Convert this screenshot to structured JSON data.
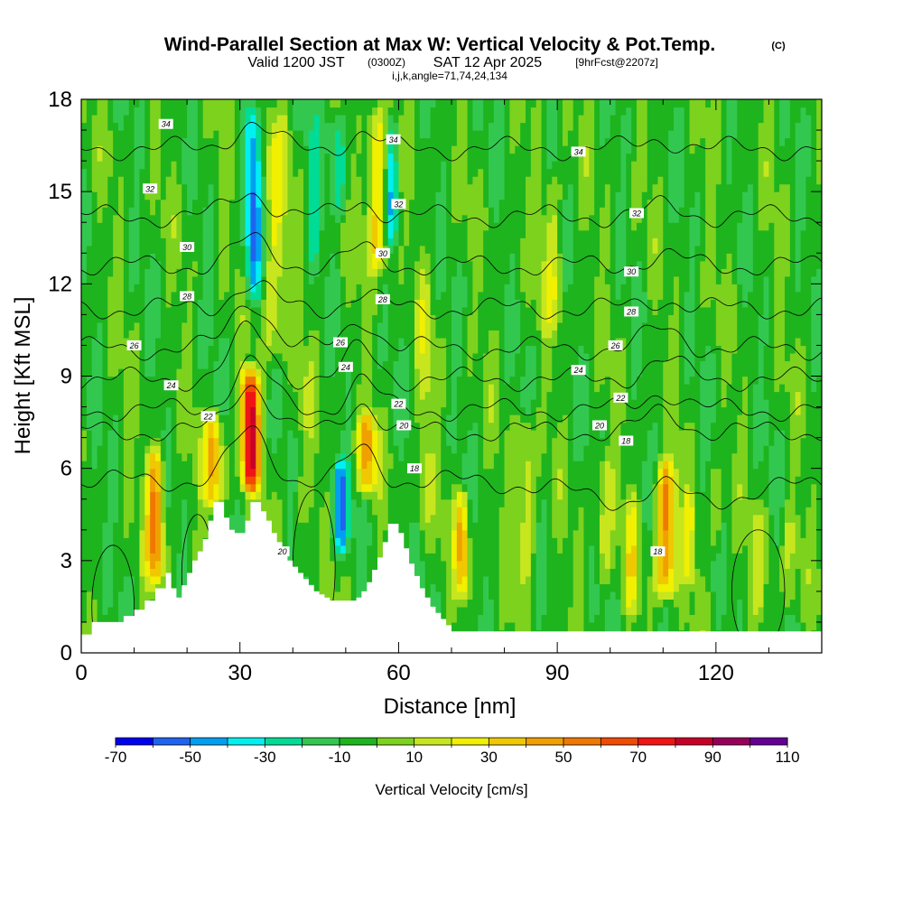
{
  "title": {
    "main": "Wind-Parallel Section at Max W: Vertical Velocity & Pot.Temp.",
    "copyright": "(C)",
    "valid_prefix": "Valid 1200 JST",
    "valid_utc": "(0300Z)",
    "valid_date": "SAT 12 Apr 2025",
    "forecast_tag": "[9hrFcst@2207z]",
    "params": "i,j,k,angle=71,74,24,134"
  },
  "colorbar_label": "Vertical Velocity [cm/s]",
  "colorbar_colors": [
    "#0000f0",
    "#1e64f0",
    "#00a0f0",
    "#00f0f0",
    "#00dc96",
    "#32c850",
    "#1eb41e",
    "#7dd21e",
    "#c8e61e",
    "#f0f000",
    "#f0c800",
    "#f0a000",
    "#f07800",
    "#f04b00",
    "#f01414",
    "#c80028",
    "#96005a",
    "#640096"
  ],
  "chart_data": {
    "type": "heatmap",
    "xlabel": "Distance [nm]",
    "ylabel": "Height [Kft MSL]",
    "xlim": [
      0,
      140
    ],
    "ylim": [
      0,
      18
    ],
    "xticks": [
      0,
      30,
      60,
      90,
      120
    ],
    "yticks": [
      0,
      3,
      6,
      9,
      12,
      15,
      18
    ],
    "colorbar_levels": [
      -70,
      -60,
      -50,
      -40,
      -30,
      -20,
      -10,
      0,
      10,
      20,
      30,
      40,
      50,
      60,
      70,
      80,
      90,
      100,
      110
    ],
    "colorbar_tick_labels": [
      "-70",
      "-50",
      "-30",
      "-10",
      "10",
      "30",
      "50",
      "70",
      "90",
      "110"
    ],
    "series": [
      {
        "name": "Vertical Velocity [cm/s]",
        "features": [
          {
            "x": 2,
            "w": 3,
            "peak": -5,
            "bottom": 0.5,
            "top": 7
          },
          {
            "x": 14,
            "w": 1.6,
            "peak": 55,
            "bottom": 2,
            "top": 7
          },
          {
            "x": 25,
            "w": 1.8,
            "peak": 45,
            "bottom": 4.5,
            "top": 8
          },
          {
            "x": 32,
            "w": 1.6,
            "peak": 90,
            "bottom": 5,
            "top": 9.5
          },
          {
            "x": 32.5,
            "w": 1.6,
            "peak": -45,
            "bottom": 11,
            "top": 18
          },
          {
            "x": 36.5,
            "w": 2.2,
            "peak": 25,
            "bottom": 9,
            "top": 18
          },
          {
            "x": 42,
            "w": 1.8,
            "peak": 8,
            "bottom": 4,
            "top": 10
          },
          {
            "x": 44,
            "w": 1.4,
            "peak": -15,
            "bottom": 12,
            "top": 18
          },
          {
            "x": 49,
            "w": 1.4,
            "peak": -45,
            "bottom": 3,
            "top": 6.5
          },
          {
            "x": 48.5,
            "w": 1.5,
            "peak": -25,
            "bottom": 14,
            "top": 18
          },
          {
            "x": 54,
            "w": 1.8,
            "peak": 45,
            "bottom": 5,
            "top": 8
          },
          {
            "x": 56,
            "w": 2.0,
            "peak": 40,
            "bottom": 12,
            "top": 18
          },
          {
            "x": 58.5,
            "w": 1.2,
            "peak": -35,
            "bottom": 13,
            "top": 18
          },
          {
            "x": 65,
            "w": 1.5,
            "peak": 15,
            "bottom": 3,
            "top": 13
          },
          {
            "x": 72,
            "w": 1.3,
            "peak": 45,
            "bottom": 1.5,
            "top": 5.5
          },
          {
            "x": 84,
            "w": 1.6,
            "peak": 25,
            "bottom": 2,
            "top": 8
          },
          {
            "x": 89,
            "w": 1.8,
            "peak": 20,
            "bottom": 10,
            "top": 16
          },
          {
            "x": 99,
            "w": 1.5,
            "peak": 20,
            "bottom": 2,
            "top": 7
          },
          {
            "x": 104,
            "w": 1.2,
            "peak": 25,
            "bottom": 1,
            "top": 5.5
          },
          {
            "x": 110.5,
            "w": 1.8,
            "peak": 60,
            "bottom": 1.5,
            "top": 6.5
          },
          {
            "x": 115,
            "w": 1.2,
            "peak": 25,
            "bottom": 2,
            "top": 5.5
          },
          {
            "x": 120,
            "w": 1.2,
            "peak": 15,
            "bottom": 3,
            "top": 6
          },
          {
            "x": 128,
            "w": 1.5,
            "peak": 15,
            "bottom": 1,
            "top": 5
          },
          {
            "x": 134,
            "w": 1.5,
            "peak": 15,
            "bottom": 1,
            "top": 5
          }
        ]
      },
      {
        "name": "Pot.Temp. contours",
        "contour_levels": [
          18,
          20,
          22,
          24,
          26,
          28,
          30,
          32,
          34
        ],
        "contour_labels": [
          {
            "text": "34",
            "x": 16,
            "y": 17.2
          },
          {
            "text": "34",
            "x": 59,
            "y": 16.7
          },
          {
            "text": "34",
            "x": 94,
            "y": 16.3
          },
          {
            "text": "32",
            "x": 13,
            "y": 15.1
          },
          {
            "text": "32",
            "x": 60,
            "y": 14.6
          },
          {
            "text": "32",
            "x": 105,
            "y": 14.3
          },
          {
            "text": "30",
            "x": 20,
            "y": 13.2
          },
          {
            "text": "30",
            "x": 57,
            "y": 13.0
          },
          {
            "text": "30",
            "x": 104,
            "y": 12.4
          },
          {
            "text": "28",
            "x": 20,
            "y": 11.6
          },
          {
            "text": "28",
            "x": 57,
            "y": 11.5
          },
          {
            "text": "28",
            "x": 104,
            "y": 11.1
          },
          {
            "text": "26",
            "x": 10,
            "y": 10.0
          },
          {
            "text": "26",
            "x": 49,
            "y": 10.1
          },
          {
            "text": "26",
            "x": 101,
            "y": 10.0
          },
          {
            "text": "24",
            "x": 17,
            "y": 8.7
          },
          {
            "text": "24",
            "x": 50,
            "y": 9.3
          },
          {
            "text": "24",
            "x": 94,
            "y": 9.2
          },
          {
            "text": "22",
            "x": 24,
            "y": 7.7
          },
          {
            "text": "22",
            "x": 60,
            "y": 8.1
          },
          {
            "text": "22",
            "x": 102,
            "y": 8.3
          },
          {
            "text": "20",
            "x": 61,
            "y": 7.4
          },
          {
            "text": "20",
            "x": 98,
            "y": 7.4
          },
          {
            "text": "20",
            "x": 38,
            "y": 3.3
          },
          {
            "text": "18",
            "x": 63,
            "y": 6.0
          },
          {
            "text": "18",
            "x": 103,
            "y": 6.9
          },
          {
            "text": "18",
            "x": 109,
            "y": 3.3
          }
        ]
      }
    ],
    "terrain_profile": {
      "x": [
        0,
        2,
        6,
        8,
        10,
        12,
        14,
        16,
        17,
        18,
        19,
        20,
        21,
        22,
        23,
        24,
        25,
        26,
        27,
        28,
        29,
        30,
        31,
        32,
        33,
        34,
        35,
        36,
        37,
        38,
        39,
        40,
        41,
        42,
        43,
        44,
        45,
        46,
        47,
        48,
        49,
        50,
        51,
        52,
        53,
        54,
        55,
        56,
        57,
        58,
        59,
        60,
        61,
        62,
        63,
        64,
        65,
        66,
        67,
        68,
        69,
        70,
        140
      ],
      "height": [
        0.6,
        1.0,
        1.0,
        1.2,
        1.4,
        1.7,
        2.1,
        2.6,
        2.1,
        1.8,
        2.2,
        2.6,
        3.0,
        3.3,
        3.7,
        4.3,
        4.9,
        4.9,
        4.4,
        4.0,
        3.9,
        3.9,
        4.3,
        4.9,
        4.9,
        4.6,
        4.3,
        3.9,
        3.6,
        3.3,
        3.0,
        2.8,
        2.6,
        2.4,
        2.2,
        2.0,
        1.9,
        1.8,
        1.7,
        1.7,
        1.7,
        1.7,
        1.7,
        1.8,
        2.0,
        2.3,
        2.7,
        3.1,
        3.6,
        4.2,
        4.2,
        3.9,
        3.4,
        2.9,
        2.5,
        2.1,
        1.8,
        1.5,
        1.3,
        1.1,
        0.9,
        0.7,
        0.3
      ]
    }
  }
}
